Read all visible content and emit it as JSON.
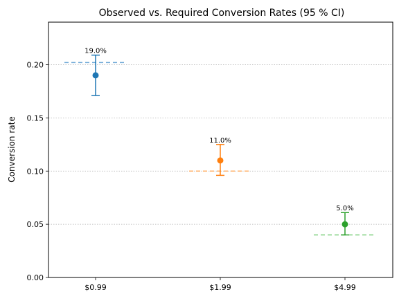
{
  "chart_data": {
    "type": "scatter",
    "title": "Observed vs. Required Conversion Rates (95 % CI)",
    "xlabel": "",
    "ylabel": "Conversion rate",
    "categories": [
      "$0.99",
      "$1.99",
      "$4.99"
    ],
    "ylim": [
      0,
      0.24
    ],
    "yticks": [
      "0.00",
      "0.05",
      "0.10",
      "0.15",
      "0.20"
    ],
    "grid": "horizontal dotted",
    "points": [
      {
        "category": "$0.99",
        "observed": 0.19,
        "ci_low": 0.171,
        "ci_high": 0.209,
        "required": 0.202,
        "label": "19.0%",
        "color": "#1f77b4",
        "required_color": "#6fa8d6"
      },
      {
        "category": "$1.99",
        "observed": 0.11,
        "ci_low": 0.096,
        "ci_high": 0.125,
        "required": 0.1,
        "label": "11.0%",
        "color": "#ff7f0e",
        "required_color": "#ffb26b"
      },
      {
        "category": "$4.99",
        "observed": 0.05,
        "ci_low": 0.04,
        "ci_high": 0.061,
        "required": 0.04,
        "label": "5.0%",
        "color": "#2ca02c",
        "required_color": "#7fcf7f"
      }
    ]
  }
}
